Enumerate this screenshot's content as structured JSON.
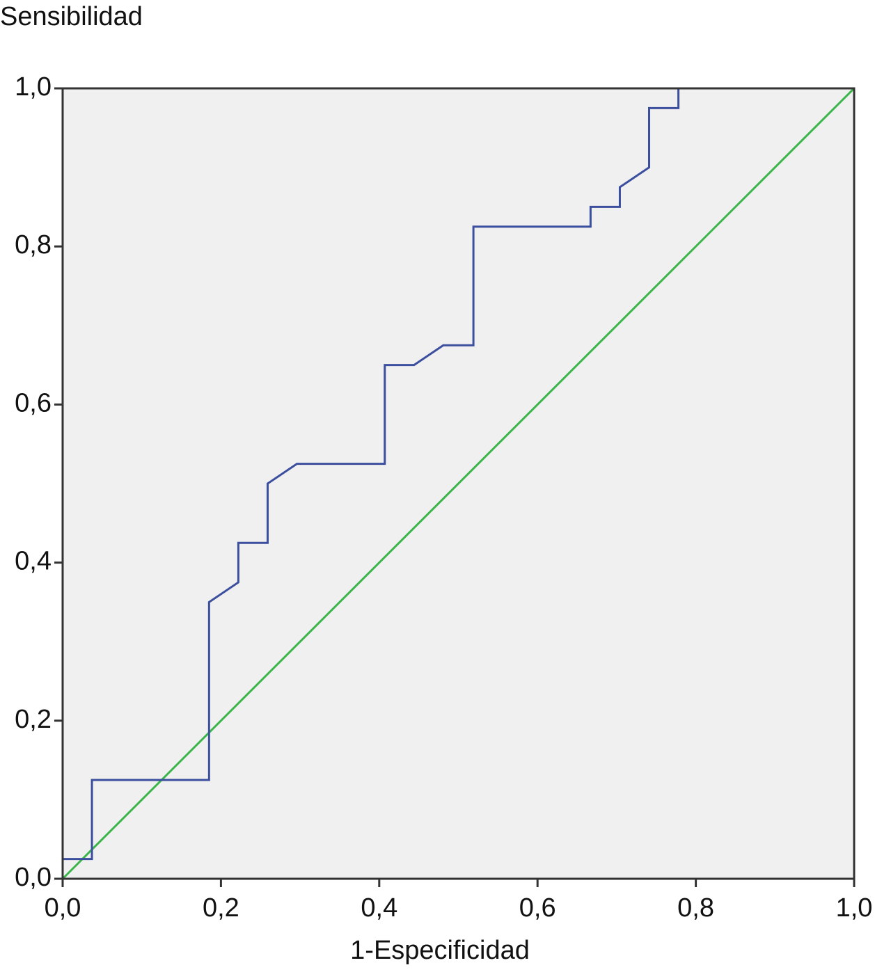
{
  "chart_data": {
    "type": "line",
    "xlabel": "1-Especificidad",
    "ylabel": "Sensibilidad",
    "series": [
      {
        "color": "#3b4f9e",
        "x": [
          0,
          0,
          0.037,
          0.037,
          0.185,
          0.185,
          0.222,
          0.222,
          0.259,
          0.259,
          0.296,
          0.407,
          0.407,
          0.444,
          0.481,
          0.519,
          0.519,
          0.667,
          0.667,
          0.704,
          0.704,
          0.741,
          0.741,
          0.778,
          0.778,
          1
        ],
        "values": [
          0,
          0.025,
          0.025,
          0.125,
          0.125,
          0.35,
          0.375,
          0.425,
          0.425,
          0.5,
          0.525,
          0.525,
          0.65,
          0.65,
          0.675,
          0.675,
          0.825,
          0.825,
          0.85,
          0.85,
          0.875,
          0.9,
          0.975,
          0.975,
          1,
          1
        ]
      },
      {
        "color": "#3cb54a",
        "x": [
          0,
          1
        ],
        "values": [
          0,
          1
        ]
      }
    ],
    "xlim": [
      0,
      1
    ],
    "ylim": [
      0,
      1
    ],
    "xticks": [
      {
        "value": 0,
        "label": "0,0"
      },
      {
        "value": 0.2,
        "label": "0,2"
      },
      {
        "value": 0.4,
        "label": "0,4"
      },
      {
        "value": 0.6,
        "label": "0,6"
      },
      {
        "value": 0.8,
        "label": "0,8"
      },
      {
        "value": 1,
        "label": "1,0"
      }
    ],
    "yticks": [
      {
        "value": 0,
        "label": "0,0"
      },
      {
        "value": 0.2,
        "label": "0,2"
      },
      {
        "value": 0.4,
        "label": "0,4"
      },
      {
        "value": 0.6,
        "label": "0,6"
      },
      {
        "value": 0.8,
        "label": "0,8"
      },
      {
        "value": 1,
        "label": "1,0"
      }
    ]
  }
}
